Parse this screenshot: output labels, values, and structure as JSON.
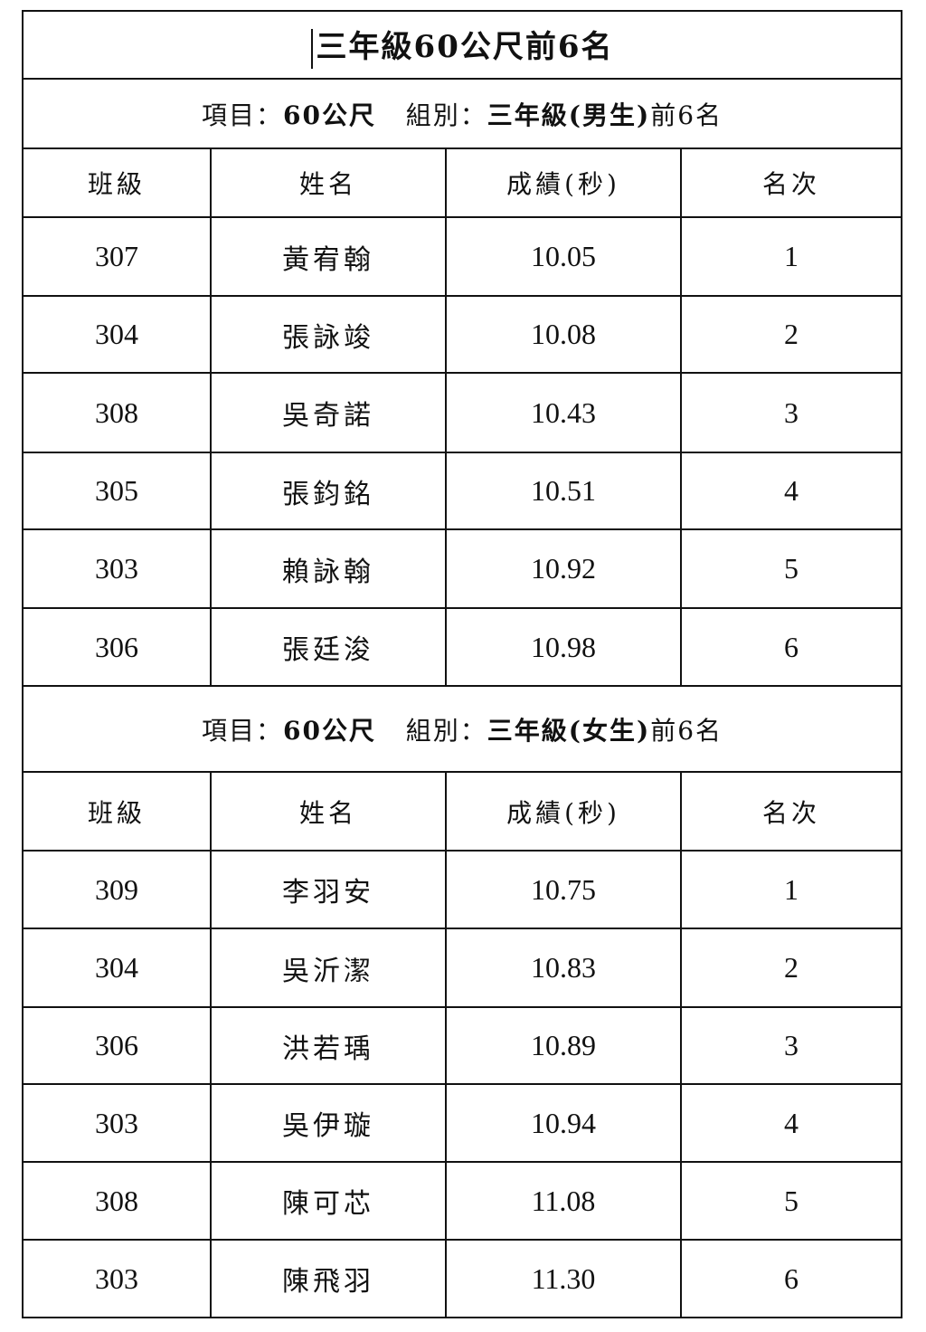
{
  "title": "三年級60公尺前6名",
  "columns": [
    "班級",
    "姓名",
    "成績(秒)",
    "名次"
  ],
  "sections": [
    {
      "item_label": "項目：",
      "item_value": "60公尺",
      "group_label": "組別：",
      "group_value": "三年級(男生)",
      "suffix": "前6名",
      "rows": [
        {
          "class": "307",
          "name": "黃宥翰",
          "score": "10.05",
          "rank": "1"
        },
        {
          "class": "304",
          "name": "張詠竣",
          "score": "10.08",
          "rank": "2"
        },
        {
          "class": "308",
          "name": "吳奇諾",
          "score": "10.43",
          "rank": "3"
        },
        {
          "class": "305",
          "name": "張鈞銘",
          "score": "10.51",
          "rank": "4"
        },
        {
          "class": "303",
          "name": "賴詠翰",
          "score": "10.92",
          "rank": "5"
        },
        {
          "class": "306",
          "name": "張廷浚",
          "score": "10.98",
          "rank": "6"
        }
      ]
    },
    {
      "item_label": "項目：",
      "item_value": "60公尺",
      "group_label": "組別：",
      "group_value": "三年級(女生)",
      "suffix": "前6名",
      "rows": [
        {
          "class": "309",
          "name": "李羽安",
          "score": "10.75",
          "rank": "1"
        },
        {
          "class": "304",
          "name": "吳沂潔",
          "score": "10.83",
          "rank": "2"
        },
        {
          "class": "306",
          "name": "洪若瑀",
          "score": "10.89",
          "rank": "3"
        },
        {
          "class": "303",
          "name": "吳伊璇",
          "score": "10.94",
          "rank": "4"
        },
        {
          "class": "308",
          "name": "陳可芯",
          "score": "11.08",
          "rank": "5"
        },
        {
          "class": "303",
          "name": "陳飛羽",
          "score": "11.30",
          "rank": "6"
        }
      ]
    }
  ]
}
